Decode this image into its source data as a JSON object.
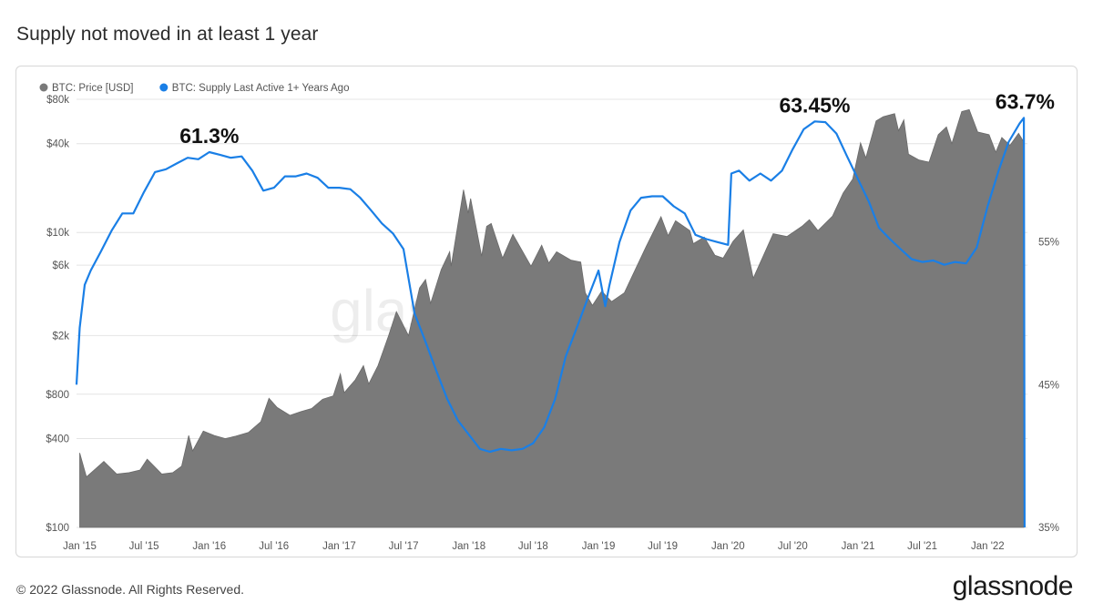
{
  "title": "Supply not moved in at least 1 year",
  "footer": {
    "copyright": "© 2022 Glassnode. All Rights Reserved."
  },
  "brand": {
    "logo_text": "glassnode",
    "watermark_text": "glassnode"
  },
  "colors": {
    "price": "#7a7a7a",
    "supply": "#1a7fe6",
    "grid": "#e4e4e4",
    "text": "#2b2b2b"
  },
  "chart_data": {
    "type": "area",
    "title": "Supply not moved in at least 1 year",
    "xlabel": "",
    "x_range": [
      "2014-12-23",
      "2022-04-23"
    ],
    "x_ticks": [
      {
        "date": "2015-01-01",
        "label": "Jan '15"
      },
      {
        "date": "2015-07-01",
        "label": "Jul '15"
      },
      {
        "date": "2016-01-01",
        "label": "Jan '16"
      },
      {
        "date": "2016-07-01",
        "label": "Jul '16"
      },
      {
        "date": "2017-01-01",
        "label": "Jan '17"
      },
      {
        "date": "2017-07-01",
        "label": "Jul '17"
      },
      {
        "date": "2018-01-01",
        "label": "Jan '18"
      },
      {
        "date": "2018-07-01",
        "label": "Jul '18"
      },
      {
        "date": "2019-01-01",
        "label": "Jan '19"
      },
      {
        "date": "2019-07-01",
        "label": "Jul '19"
      },
      {
        "date": "2020-01-01",
        "label": "Jan '20"
      },
      {
        "date": "2020-07-01",
        "label": "Jul '20"
      },
      {
        "date": "2021-01-01",
        "label": "Jan '21"
      },
      {
        "date": "2021-07-01",
        "label": "Jul '21"
      },
      {
        "date": "2022-01-01",
        "label": "Jan '22"
      }
    ],
    "left_axis": {
      "scale": "log",
      "range": [
        100,
        80000
      ],
      "ticks": [
        {
          "value": 100,
          "label": "$100"
        },
        {
          "value": 400,
          "label": "$400"
        },
        {
          "value": 800,
          "label": "$800"
        },
        {
          "value": 2000,
          "label": "$2k"
        },
        {
          "value": 6000,
          "label": "$6k"
        },
        {
          "value": 10000,
          "label": "$10k"
        },
        {
          "value": 40000,
          "label": "$40k"
        },
        {
          "value": 80000,
          "label": "$80k"
        }
      ]
    },
    "right_axis": {
      "scale": "linear",
      "range": [
        35,
        65
      ],
      "ticks": [
        {
          "value": 35,
          "label": "35%"
        },
        {
          "value": 45,
          "label": "45%"
        },
        {
          "value": 55,
          "label": "55%"
        }
      ]
    },
    "legend": {
      "placement": "top-left"
    },
    "series": [
      {
        "name": "BTC: Price [USD]",
        "type": "area",
        "axis": "left",
        "color": "#7a7a7a",
        "points": [
          [
            "2015-01-01",
            320
          ],
          [
            "2015-01-20",
            220
          ],
          [
            "2015-02-15",
            250
          ],
          [
            "2015-03-10",
            280
          ],
          [
            "2015-04-15",
            230
          ],
          [
            "2015-05-20",
            235
          ],
          [
            "2015-06-20",
            245
          ],
          [
            "2015-07-10",
            290
          ],
          [
            "2015-08-20",
            230
          ],
          [
            "2015-09-20",
            235
          ],
          [
            "2015-10-15",
            260
          ],
          [
            "2015-11-04",
            420
          ],
          [
            "2015-11-15",
            330
          ],
          [
            "2015-12-15",
            450
          ],
          [
            "2016-01-15",
            420
          ],
          [
            "2016-02-15",
            400
          ],
          [
            "2016-03-15",
            415
          ],
          [
            "2016-04-20",
            440
          ],
          [
            "2016-05-25",
            520
          ],
          [
            "2016-06-17",
            750
          ],
          [
            "2016-07-10",
            650
          ],
          [
            "2016-08-15",
            575
          ],
          [
            "2016-09-15",
            610
          ],
          [
            "2016-10-15",
            640
          ],
          [
            "2016-11-15",
            740
          ],
          [
            "2016-12-15",
            780
          ],
          [
            "2017-01-04",
            1100
          ],
          [
            "2017-01-15",
            820
          ],
          [
            "2017-02-15",
            1000
          ],
          [
            "2017-03-10",
            1250
          ],
          [
            "2017-03-25",
            940
          ],
          [
            "2017-04-20",
            1250
          ],
          [
            "2017-05-20",
            2000
          ],
          [
            "2017-06-11",
            2900
          ],
          [
            "2017-07-15",
            2000
          ],
          [
            "2017-08-15",
            4200
          ],
          [
            "2017-09-01",
            4800
          ],
          [
            "2017-09-15",
            3300
          ],
          [
            "2017-10-15",
            5600
          ],
          [
            "2017-11-08",
            7400
          ],
          [
            "2017-11-12",
            5900
          ],
          [
            "2017-12-17",
            19500
          ],
          [
            "2017-12-30",
            13500
          ],
          [
            "2018-01-06",
            17000
          ],
          [
            "2018-02-06",
            6900
          ],
          [
            "2018-02-20",
            11000
          ],
          [
            "2018-03-05",
            11500
          ],
          [
            "2018-04-06",
            6700
          ],
          [
            "2018-05-05",
            9700
          ],
          [
            "2018-06-25",
            5900
          ],
          [
            "2018-07-25",
            8200
          ],
          [
            "2018-08-14",
            6200
          ],
          [
            "2018-09-05",
            7400
          ],
          [
            "2018-10-15",
            6500
          ],
          [
            "2018-11-12",
            6300
          ],
          [
            "2018-11-25",
            3900
          ],
          [
            "2018-12-15",
            3200
          ],
          [
            "2019-01-10",
            4000
          ],
          [
            "2019-02-07",
            3400
          ],
          [
            "2019-03-15",
            3900
          ],
          [
            "2019-04-05",
            5000
          ],
          [
            "2019-05-15",
            8000
          ],
          [
            "2019-06-26",
            12800
          ],
          [
            "2019-07-16",
            9500
          ],
          [
            "2019-08-06",
            12000
          ],
          [
            "2019-09-15",
            10300
          ],
          [
            "2019-09-25",
            8400
          ],
          [
            "2019-10-26",
            9300
          ],
          [
            "2019-11-25",
            7000
          ],
          [
            "2019-12-18",
            6700
          ],
          [
            "2020-01-15",
            8700
          ],
          [
            "2020-02-13",
            10400
          ],
          [
            "2020-03-12",
            4900
          ],
          [
            "2020-04-10",
            7000
          ],
          [
            "2020-05-07",
            9800
          ],
          [
            "2020-06-15",
            9400
          ],
          [
            "2020-07-27",
            11000
          ],
          [
            "2020-08-17",
            12200
          ],
          [
            "2020-09-10",
            10300
          ],
          [
            "2020-10-21",
            12900
          ],
          [
            "2020-11-20",
            18500
          ],
          [
            "2020-12-17",
            23000
          ],
          [
            "2021-01-08",
            40500
          ],
          [
            "2021-01-23",
            32000
          ],
          [
            "2021-02-21",
            57000
          ],
          [
            "2021-03-13",
            61000
          ],
          [
            "2021-04-14",
            64000
          ],
          [
            "2021-04-25",
            49000
          ],
          [
            "2021-05-10",
            58000
          ],
          [
            "2021-05-23",
            34000
          ],
          [
            "2021-06-22",
            31000
          ],
          [
            "2021-07-20",
            30000
          ],
          [
            "2021-08-15",
            46000
          ],
          [
            "2021-09-07",
            52000
          ],
          [
            "2021-09-22",
            40000
          ],
          [
            "2021-10-20",
            66000
          ],
          [
            "2021-11-10",
            68000
          ],
          [
            "2021-12-04",
            48000
          ],
          [
            "2022-01-05",
            46000
          ],
          [
            "2022-01-24",
            35000
          ],
          [
            "2022-02-10",
            44000
          ],
          [
            "2022-03-05",
            39000
          ],
          [
            "2022-03-29",
            47000
          ],
          [
            "2022-04-13",
            41000
          ]
        ]
      },
      {
        "name": "BTC: Supply Last Active 1+ Years Ago",
        "type": "line",
        "axis": "right",
        "color": "#1a7fe6",
        "points": [
          [
            "2014-12-23",
            45.0
          ],
          [
            "2015-01-01",
            49.0
          ],
          [
            "2015-01-15",
            52.0
          ],
          [
            "2015-02-01",
            53.0
          ],
          [
            "2015-03-01",
            54.3
          ],
          [
            "2015-04-01",
            55.8
          ],
          [
            "2015-05-01",
            57.0
          ],
          [
            "2015-06-01",
            57.0
          ],
          [
            "2015-07-01",
            58.5
          ],
          [
            "2015-08-01",
            59.9
          ],
          [
            "2015-09-01",
            60.1
          ],
          [
            "2015-10-01",
            60.5
          ],
          [
            "2015-11-01",
            60.9
          ],
          [
            "2015-12-01",
            60.8
          ],
          [
            "2016-01-01",
            61.3
          ],
          [
            "2016-02-01",
            61.1
          ],
          [
            "2016-03-01",
            60.9
          ],
          [
            "2016-04-01",
            61.0
          ],
          [
            "2016-05-01",
            60.0
          ],
          [
            "2016-06-01",
            58.6
          ],
          [
            "2016-07-01",
            58.8
          ],
          [
            "2016-08-01",
            59.6
          ],
          [
            "2016-09-01",
            59.6
          ],
          [
            "2016-10-01",
            59.8
          ],
          [
            "2016-11-01",
            59.5
          ],
          [
            "2016-12-01",
            58.8
          ],
          [
            "2017-01-01",
            58.8
          ],
          [
            "2017-02-01",
            58.7
          ],
          [
            "2017-03-01",
            58.1
          ],
          [
            "2017-04-01",
            57.2
          ],
          [
            "2017-05-01",
            56.3
          ],
          [
            "2017-06-01",
            55.6
          ],
          [
            "2017-07-01",
            54.5
          ],
          [
            "2017-08-01",
            50.0
          ],
          [
            "2017-09-01",
            48.0
          ],
          [
            "2017-10-01",
            46.0
          ],
          [
            "2017-11-01",
            44.0
          ],
          [
            "2017-12-01",
            42.5
          ],
          [
            "2018-01-01",
            41.5
          ],
          [
            "2018-02-01",
            40.5
          ],
          [
            "2018-03-01",
            40.3
          ],
          [
            "2018-04-01",
            40.5
          ],
          [
            "2018-05-01",
            40.4
          ],
          [
            "2018-06-01",
            40.5
          ],
          [
            "2018-07-01",
            40.9
          ],
          [
            "2018-08-01",
            42.0
          ],
          [
            "2018-09-01",
            44.0
          ],
          [
            "2018-10-01",
            47.0
          ],
          [
            "2018-11-01",
            49.0
          ],
          [
            "2018-12-01",
            51.0
          ],
          [
            "2019-01-01",
            53.0
          ],
          [
            "2019-01-20",
            50.5
          ],
          [
            "2019-02-01",
            52.0
          ],
          [
            "2019-03-01",
            55.0
          ],
          [
            "2019-04-01",
            57.2
          ],
          [
            "2019-05-01",
            58.1
          ],
          [
            "2019-06-01",
            58.2
          ],
          [
            "2019-07-01",
            58.2
          ],
          [
            "2019-08-01",
            57.5
          ],
          [
            "2019-09-01",
            57.0
          ],
          [
            "2019-10-01",
            55.5
          ],
          [
            "2019-11-01",
            55.2
          ],
          [
            "2019-12-01",
            55.0
          ],
          [
            "2020-01-01",
            54.8
          ],
          [
            "2020-01-10",
            59.8
          ],
          [
            "2020-02-01",
            60.0
          ],
          [
            "2020-03-01",
            59.3
          ],
          [
            "2020-04-01",
            59.8
          ],
          [
            "2020-05-01",
            59.3
          ],
          [
            "2020-06-01",
            60.0
          ],
          [
            "2020-07-01",
            61.5
          ],
          [
            "2020-08-01",
            62.9
          ],
          [
            "2020-09-01",
            63.45
          ],
          [
            "2020-10-01",
            63.4
          ],
          [
            "2020-11-01",
            62.6
          ],
          [
            "2020-12-01",
            61.0
          ],
          [
            "2021-01-01",
            59.4
          ],
          [
            "2021-02-01",
            57.8
          ],
          [
            "2021-03-01",
            56.0
          ],
          [
            "2021-04-01",
            55.2
          ],
          [
            "2021-05-01",
            54.5
          ],
          [
            "2021-06-01",
            53.8
          ],
          [
            "2021-07-01",
            53.6
          ],
          [
            "2021-08-01",
            53.7
          ],
          [
            "2021-09-01",
            53.4
          ],
          [
            "2021-10-01",
            53.6
          ],
          [
            "2021-11-01",
            53.5
          ],
          [
            "2021-12-01",
            54.6
          ],
          [
            "2022-01-01",
            57.5
          ],
          [
            "2022-02-01",
            60.0
          ],
          [
            "2022-03-01",
            62.0
          ],
          [
            "2022-04-01",
            63.3
          ],
          [
            "2022-04-13",
            63.7
          ],
          [
            "2022-04-15",
            35.0
          ]
        ]
      }
    ],
    "annotations": [
      {
        "text": "61.3%",
        "date": "2016-01-01",
        "value": 61.3,
        "axis": "right"
      },
      {
        "text": "63.45%",
        "date": "2020-09-01",
        "value": 63.45,
        "axis": "right"
      },
      {
        "text": "63.7%",
        "date": "2022-04-13",
        "value": 63.7,
        "axis": "right"
      }
    ]
  }
}
